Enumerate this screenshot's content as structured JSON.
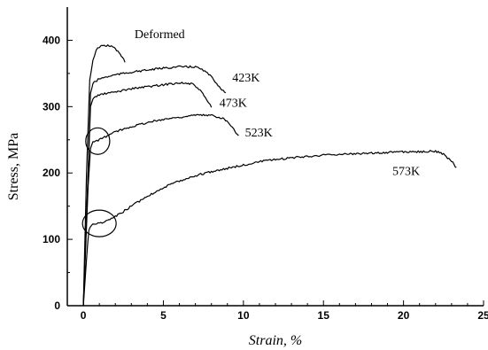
{
  "chart_data": {
    "type": "line",
    "title": "",
    "xlabel": "Strain, %",
    "ylabel": "Stress, MPa",
    "xlim": [
      -1,
      25
    ],
    "ylim": [
      0,
      450
    ],
    "xticks": [
      0,
      5,
      10,
      15,
      20,
      25
    ],
    "yticks": [
      0,
      100,
      200,
      300,
      400
    ],
    "grid": false,
    "series": [
      {
        "name": "Deformed",
        "x": [
          0,
          0.2,
          0.4,
          0.6,
          0.8,
          1.0,
          1.3,
          1.6,
          2.0,
          2.3,
          2.6
        ],
        "y": [
          0,
          200,
          340,
          370,
          385,
          390,
          392,
          392,
          388,
          378,
          368
        ]
      },
      {
        "name": "423K",
        "x": [
          0,
          0.3,
          0.45,
          0.6,
          1.0,
          2.0,
          3.0,
          4.0,
          5.0,
          6.0,
          7.0,
          7.5,
          8.0,
          8.5,
          8.9
        ],
        "y": [
          0,
          200,
          320,
          335,
          342,
          348,
          352,
          355,
          358,
          360,
          360,
          355,
          345,
          330,
          320
        ]
      },
      {
        "name": "473K",
        "x": [
          0,
          0.3,
          0.45,
          0.6,
          1.0,
          2.0,
          3.0,
          4.0,
          5.0,
          6.0,
          6.8,
          7.3,
          7.7,
          8.0
        ],
        "y": [
          0,
          200,
          300,
          312,
          318,
          322,
          327,
          330,
          333,
          336,
          334,
          325,
          310,
          300
        ]
      },
      {
        "name": "523K",
        "x": [
          0,
          0.3,
          0.45,
          0.6,
          1.0,
          1.5,
          2.0,
          3.0,
          4.0,
          5.0,
          6.0,
          7.0,
          8.0,
          8.8,
          9.3,
          9.7
        ],
        "y": [
          0,
          180,
          238,
          246,
          250,
          256,
          262,
          270,
          276,
          281,
          284,
          287,
          287,
          282,
          270,
          255
        ]
      },
      {
        "name": "573K",
        "x": [
          0,
          0.2,
          0.35,
          0.5,
          1.0,
          1.5,
          2.0,
          3.0,
          4.0,
          5.0,
          6.0,
          7.0,
          8.0,
          9.0,
          10.0,
          11.0,
          12.0,
          13.0,
          14.0,
          15.0,
          16.0,
          17.0,
          18.0,
          19.0,
          20.0,
          21.0,
          22.0,
          22.5,
          23.0,
          23.3
        ],
        "y": [
          0,
          70,
          115,
          122,
          124,
          128,
          134,
          150,
          165,
          178,
          188,
          196,
          202,
          207,
          212,
          217,
          220,
          223,
          225,
          227,
          228,
          229,
          230,
          231,
          232,
          232,
          233,
          228,
          218,
          208
        ]
      }
    ],
    "annotations": [
      {
        "type": "circle",
        "x": 0.9,
        "y": 248,
        "rx": 0.75,
        "ry": 20
      },
      {
        "type": "circle",
        "x": 1.0,
        "y": 124,
        "rx": 1.05,
        "ry": 20
      }
    ],
    "curve_labels": [
      {
        "text": "Deformed",
        "x": 3.2,
        "y": 403
      },
      {
        "text": "423K",
        "x": 9.3,
        "y": 338
      },
      {
        "text": "473K",
        "x": 8.5,
        "y": 300
      },
      {
        "text": "523K",
        "x": 10.1,
        "y": 255
      },
      {
        "text": "573K",
        "x": 19.3,
        "y": 197
      }
    ]
  }
}
